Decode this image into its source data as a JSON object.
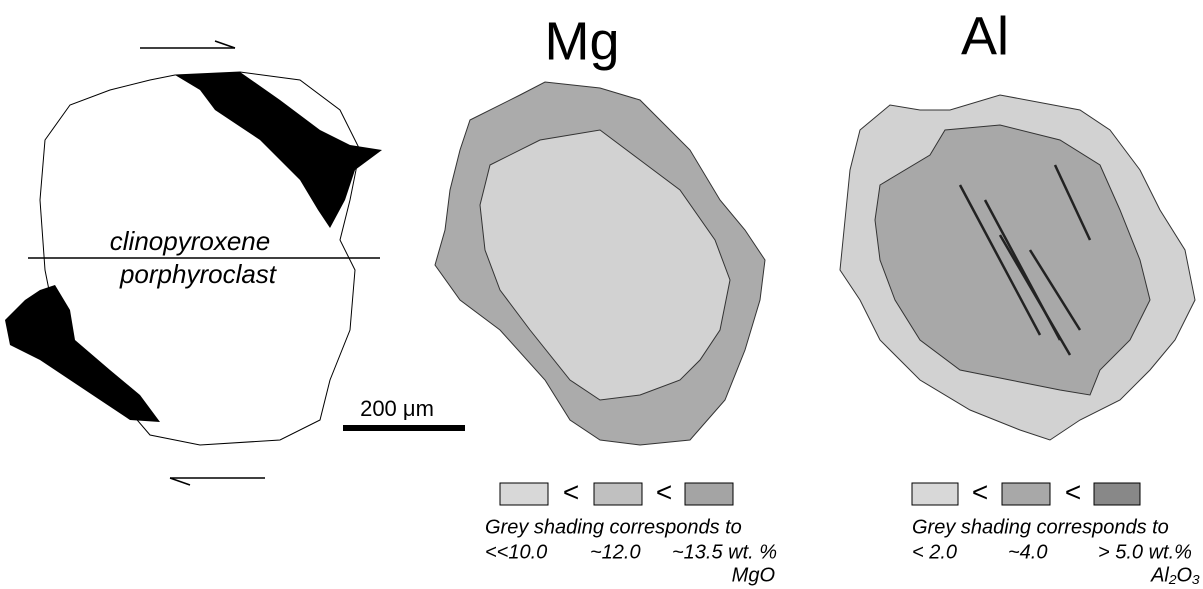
{
  "left_panel": {
    "label_lines": [
      "clinopyroxene",
      "porphyroclast"
    ],
    "scale_bar": "200 μm"
  },
  "panels": [
    {
      "title": "Mg",
      "separators": [
        "<",
        "<"
      ],
      "caption": "Grey shading corresponds to",
      "levels": [
        "<<10.0",
        "~12.0",
        "~13.5 wt. %"
      ],
      "oxide": "MgO"
    },
    {
      "title": "Al",
      "separators": [
        "<",
        "<"
      ],
      "caption": "Grey shading corresponds to",
      "levels": [
        "< 2.0",
        "~4.0",
        "> 5.0 wt.%"
      ],
      "oxide": "Al₂O₃"
    }
  ]
}
